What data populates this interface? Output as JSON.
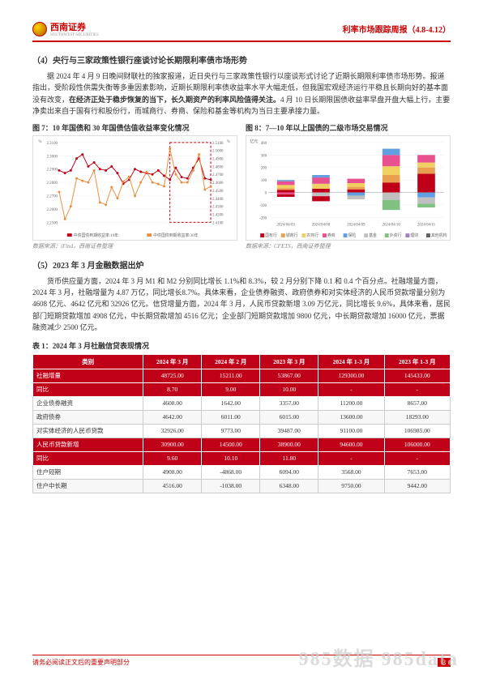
{
  "header": {
    "brand": "西南证券",
    "brand_sub": "SOUTHWEST SECURITIES",
    "title_right": "利率市场跟踪周报（4.8-4.12）"
  },
  "section4": {
    "title": "（4）央行与三家政策性银行座谈讨论长期限利率债市场形势",
    "para1": "据 2024 年 4 月 9 日晚间财联社的独家报道，近日央行与三家政策性银行以座谈形式讨论了近期长期限利率债市场形势。报道指出，受阶段性供需失衡等多重因素影响，近期长期限利率债收益率水平大幅走低，但我国宏观经济运行平稳且长期向好的基本面没有改变，",
    "para1_bold": "在经济正处于稳步恢复的当下，长久期资产的利率风险值得关注。",
    "para1_cont": "4 月 10 日长期限国债收益率早盘开盘大幅上行，主要净卖出来自于国有行和股份行，而城商行、券商、保险和基金等机构为当日主要承接力量。",
    "chart7_title": "图 7：10 年国债和 30 年国债估值收益率变化情况",
    "chart8_title": "图 8：7—10 年以上国债的二级市场交易情况",
    "chart7_source": "数据来源：iFind，西南证券整理",
    "chart8_source": "数据来源：CFETS，西南证券整理"
  },
  "chart7": {
    "y_left_label": "%",
    "y_right_label": "%",
    "y_left_ticks": [
      "2.3100",
      "2.3000",
      "2.2900",
      "2.2800",
      "2.2700",
      "2.2600",
      "2.2500"
    ],
    "y_right_ticks": [
      "2.5100",
      "2.5000",
      "2.4900",
      "2.4800",
      "2.4700",
      "2.4600",
      "2.4500",
      "2.4400",
      "2.4300",
      "2.4200",
      "2.4100"
    ],
    "series1_label": "中债国债到期收益率:10年",
    "series2_label": "中债国债到期收益率:30年",
    "series1_color": "#c00018",
    "series2_color": "#e89040",
    "line1": [
      2.289,
      2.287,
      2.289,
      2.298,
      2.301,
      2.292,
      2.295,
      2.29,
      2.289,
      2.292,
      2.287,
      2.279,
      2.282,
      2.29,
      2.288,
      2.287,
      2.286,
      2.289,
      2.285,
      2.282,
      2.291,
      2.284,
      2.283,
      2.291,
      2.298,
      2.283,
      2.282
    ],
    "line2": [
      2.448,
      2.414,
      2.43,
      2.465,
      2.462,
      2.46,
      2.475,
      2.435,
      2.432,
      2.454,
      2.44,
      2.461,
      2.467,
      2.443,
      2.46,
      2.473,
      2.46,
      2.458,
      2.455,
      2.502,
      2.47,
      2.46,
      2.46,
      2.475,
      2.495,
      2.451,
      2.455
    ]
  },
  "chart8": {
    "y_label": "亿元",
    "y_ticks": [
      "400",
      "300",
      "200",
      "100",
      "0",
      "-100",
      "-200"
    ],
    "dates": [
      "2024/04/03",
      "2024/04/08",
      "2024/04/09",
      "2024/04/10",
      "2024/04/11"
    ],
    "legend": [
      {
        "label": "国有行",
        "color": "#c00018"
      },
      {
        "label": "城商行",
        "color": "#e8a050"
      },
      {
        "label": "农商行",
        "color": "#f0d060"
      },
      {
        "label": "券商",
        "color": "#e85090"
      },
      {
        "label": "保险",
        "color": "#60a0e0"
      },
      {
        "label": "基金",
        "color": "#c0c0c0"
      },
      {
        "label": "外资行",
        "color": "#80c080"
      },
      {
        "label": "理财",
        "color": "#a080c0"
      },
      {
        "label": "其他机构",
        "color": "#606060"
      }
    ]
  },
  "section5": {
    "title": "（5）2023 年 3 月金融数据出炉",
    "para": "货币供应量方面，2024 年 3 月 M1 和 M2 分别同比增长 1.1%和 8.3%，较 2 月分别下降 0.1 和 0.4 个百分点。社融增量方面，2024 年 3 月，社融增量为 4.87 万亿，同比增长8.7%。具体来看，企业债券融资、政府债券和对实体经济的人民币贷款增量分别为 4608 亿元、4642 亿元和 32926 亿元。信贷增量方面，2024 年 3 月，人民币贷款新增 3.09 万亿元，同比增长 9.6%，具体来看，居民部门短期贷款增加 4908 亿元，中长期贷款增加 4516 亿元；企业部门短期贷款增加 9800 亿元，中长期贷款增加 16000 亿元，票据融资减少 2500 亿元。"
  },
  "table": {
    "title": "表 1：2024 年 3 月社融信贷表现情况",
    "headers": [
      "类别",
      "2024 年 3 月",
      "2024 年 2 月",
      "2023 年 3 月",
      "2024 年 1-3 月",
      "2023 年 1-3 月"
    ],
    "rows": [
      {
        "cells": [
          "社融增量",
          "48725.00",
          "15211.00",
          "53867.00",
          "129300.00",
          "145433.00"
        ],
        "red": true
      },
      {
        "cells": [
          "同比",
          "8.70",
          "9.00",
          "10.00",
          "-",
          "-"
        ],
        "red": true
      },
      {
        "cells": [
          "企业债券融资",
          "4608.00",
          "1642.00",
          "3357.00",
          "11200.00",
          "8657.00"
        ],
        "red": false
      },
      {
        "cells": [
          "政府债券",
          "4642.00",
          "6011.00",
          "6015.00",
          "13600.00",
          "18293.00"
        ],
        "red": false,
        "alt": true
      },
      {
        "cells": [
          "对实体经济的人民币贷款",
          "32926.00",
          "9773.00",
          "39487.00",
          "91100.00",
          "106985.00"
        ],
        "red": false
      },
      {
        "cells": [
          "人民币贷款新增",
          "30900.00",
          "14500.00",
          "38900.00",
          "94600.00",
          "106000.00"
        ],
        "red": true
      },
      {
        "cells": [
          "同比",
          "9.60",
          "10.10",
          "11.80",
          "-",
          "-"
        ],
        "red": true
      },
      {
        "cells": [
          "住户短期",
          "4908.00",
          "-4868.00",
          "6094.00",
          "3568.00",
          "7653.00"
        ],
        "red": false
      },
      {
        "cells": [
          "住户中长期",
          "4516.00",
          "-1038.00",
          "6348.00",
          "9750.00",
          "9442.00"
        ],
        "red": false,
        "alt": true
      }
    ]
  },
  "footer": {
    "left": "请务必阅读正文后的重要声明部分",
    "page": "3"
  },
  "watermark": "985数据 985data"
}
